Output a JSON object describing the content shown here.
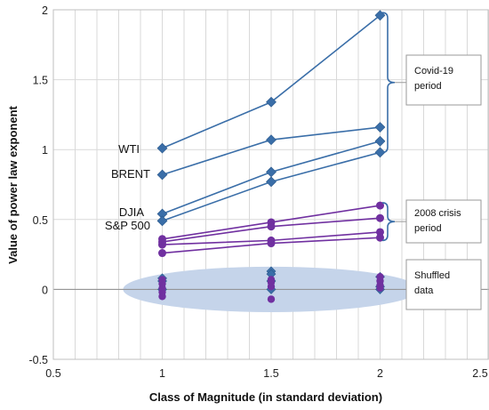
{
  "chart_data": {
    "type": "scatter",
    "xlabel": "Class of Magnitude (in standard deviation)",
    "ylabel": "Value of power law exponent",
    "xlim": [
      0.5,
      2.5
    ],
    "ylim": [
      -0.5,
      2
    ],
    "x_ticks": [
      "0.5",
      "1",
      "1.5",
      "2",
      "2.5"
    ],
    "y_ticks": [
      "-0.5",
      "0",
      "0.5",
      "1",
      "1.5",
      "2"
    ],
    "grid": "on",
    "x": [
      1,
      1.5,
      2
    ],
    "series_labels": [
      "WTI",
      "BRENT",
      "DJIA",
      "S&P 500"
    ],
    "covid_series": [
      {
        "color": "#3A6EA8",
        "values": [
          1.01,
          1.34,
          1.96
        ]
      },
      {
        "color": "#3A6EA8",
        "values": [
          0.82,
          1.07,
          1.16
        ]
      },
      {
        "color": "#3A6EA8",
        "values": [
          0.54,
          0.84,
          1.06
        ]
      },
      {
        "color": "#3A6EA8",
        "values": [
          0.49,
          0.77,
          0.98
        ]
      }
    ],
    "crisis_series": [
      {
        "color": "#7030A0",
        "values": [
          0.36,
          0.48,
          0.6
        ]
      },
      {
        "color": "#7030A0",
        "values": [
          0.34,
          0.45,
          0.51
        ]
      },
      {
        "color": "#7030A0",
        "values": [
          0.32,
          0.35,
          0.41
        ]
      },
      {
        "color": "#7030A0",
        "values": [
          0.26,
          0.33,
          0.37
        ]
      }
    ],
    "shuffled_diamonds": [
      {
        "x": 1,
        "values": [
          0.08,
          0.06,
          0.0
        ]
      },
      {
        "x": 1.5,
        "values": [
          0.13,
          0.11,
          0.06,
          0.0
        ]
      },
      {
        "x": 2,
        "values": [
          0.09,
          0.02,
          0.0
        ]
      }
    ],
    "shuffled_circles": [
      {
        "x": 1,
        "values": [
          0.07,
          0.04,
          0.01,
          -0.02,
          -0.05
        ]
      },
      {
        "x": 1.5,
        "values": [
          0.07,
          0.05,
          0.02,
          -0.07
        ]
      },
      {
        "x": 2,
        "values": [
          0.09,
          0.06,
          0.03,
          0.01
        ]
      }
    ],
    "annotations": [
      {
        "lines": [
          "Covid-19",
          "period"
        ]
      },
      {
        "lines": [
          "2008 crisis",
          "period"
        ]
      },
      {
        "lines": [
          "Shuffled",
          "data"
        ]
      }
    ],
    "colors": {
      "covid": "#3A6EA8",
      "crisis": "#7030A0",
      "ellipse": "#C5D4EA",
      "grid": "#D9D9D9"
    }
  }
}
